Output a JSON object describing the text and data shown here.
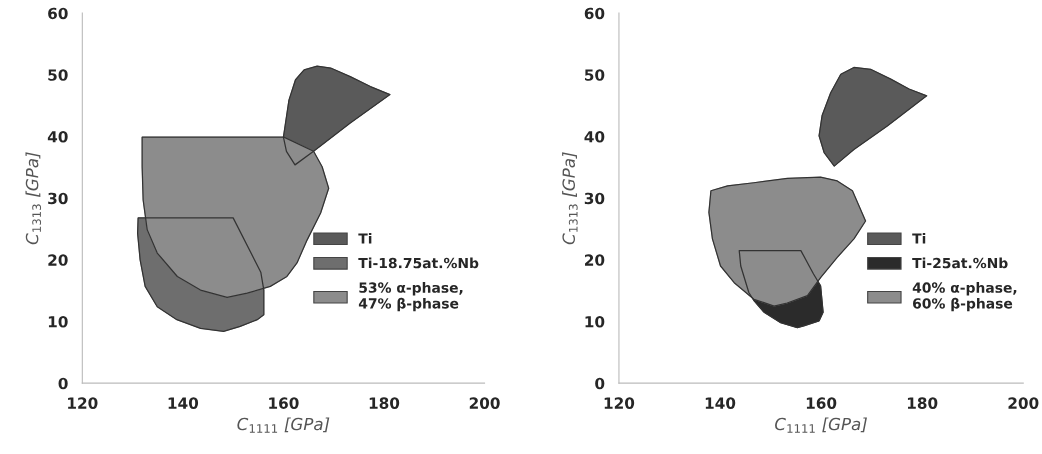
{
  "chart_data": [
    {
      "type": "area",
      "xlabel": "C$_{1111}$ [GPa]",
      "ylabel": "C$_{1313}$ [GPa]",
      "xlim": [
        120,
        200
      ],
      "ylim": [
        0,
        60
      ],
      "xticks": [
        120,
        140,
        160,
        180,
        200
      ],
      "yticks": [
        0,
        10,
        20,
        30,
        40,
        50,
        60
      ],
      "grid": false,
      "legend": "right",
      "series": [
        {
          "name": "Ti",
          "color": "#5a5a5a",
          "x": [
            160.0,
            161.1,
            162.4,
            164.1,
            166.7,
            169.4,
            173.3,
            177.3,
            181.2,
            173.3,
            166.0,
            162.3,
            160.6
          ],
          "values": [
            39.9,
            45.9,
            49.2,
            50.8,
            51.4,
            51.1,
            49.7,
            48.1,
            46.8,
            42.2,
            37.6,
            35.4,
            37.6
          ]
        },
        {
          "name": "Ti-18.75at.%Nb",
          "color": "#6e6e6e",
          "x": [
            131.1,
            150.0,
            155.5,
            156.1,
            156.1,
            154.8,
            151.4,
            148.1,
            143.5,
            138.8,
            134.9,
            132.5,
            131.5,
            131.0
          ],
          "values": [
            26.8,
            26.8,
            18.0,
            15.1,
            11.1,
            10.3,
            9.2,
            8.4,
            8.9,
            10.3,
            12.4,
            15.7,
            20.0,
            24.3
          ]
        },
        {
          "name": "53% α-phase,\n47% β-phase",
          "color": "#8c8c8c",
          "x": [
            131.9,
            160.1,
            166.0,
            167.7,
            169.0,
            167.4,
            164.7,
            162.7,
            160.7,
            157.4,
            152.8,
            148.8,
            143.5,
            138.9,
            134.9,
            132.9,
            132.1,
            131.9
          ],
          "values": [
            39.9,
            39.9,
            37.6,
            35.1,
            31.6,
            27.6,
            23.2,
            19.5,
            17.3,
            15.7,
            14.6,
            13.9,
            15.1,
            17.3,
            21.1,
            24.9,
            29.7,
            35.1
          ]
        }
      ]
    },
    {
      "type": "area",
      "xlabel": "C$_{1111}$ [GPa]",
      "ylabel": "C$_{1313}$ [GPa]",
      "xlim": [
        120,
        200
      ],
      "ylim": [
        0,
        60
      ],
      "xticks": [
        120,
        140,
        160,
        180,
        200
      ],
      "yticks": [
        0,
        10,
        20,
        30,
        40,
        50,
        60
      ],
      "grid": false,
      "legend": "right",
      "series": [
        {
          "name": "Ti",
          "color": "#5a5a5a",
          "x": [
            159.6,
            160.2,
            161.9,
            163.9,
            166.5,
            169.8,
            173.8,
            177.4,
            180.9,
            173.1,
            166.5,
            162.6,
            160.6
          ],
          "values": [
            40.1,
            43.4,
            47.1,
            50.1,
            51.2,
            50.9,
            49.3,
            47.7,
            46.6,
            41.7,
            37.9,
            35.2,
            37.4
          ]
        },
        {
          "name": "Ti-25at.%Nb",
          "color": "#2b2b2b",
          "x": [
            143.8,
            156.0,
            158.5,
            159.9,
            160.4,
            159.6,
            156.6,
            155.3,
            152.0,
            148.7,
            146.7,
            145.7,
            144.1
          ],
          "values": [
            21.5,
            21.5,
            17.7,
            15.8,
            11.5,
            10.1,
            9.3,
            9.0,
            9.8,
            11.5,
            13.4,
            14.7,
            19.0
          ]
        },
        {
          "name": "40% α-phase,\n60% β-phase",
          "color": "#8c8c8c",
          "x": [
            138.2,
            141.5,
            146.7,
            153.3,
            159.9,
            163.2,
            166.2,
            168.8,
            166.5,
            163.2,
            159.9,
            157.3,
            153.3,
            150.7,
            146.7,
            142.8,
            140.1,
            138.5,
            137.8
          ],
          "values": [
            31.2,
            32.0,
            32.5,
            33.2,
            33.4,
            32.8,
            31.2,
            26.3,
            23.4,
            20.4,
            17.1,
            14.2,
            13.0,
            12.5,
            13.6,
            16.3,
            19.0,
            23.4,
            27.7
          ]
        }
      ]
    }
  ]
}
